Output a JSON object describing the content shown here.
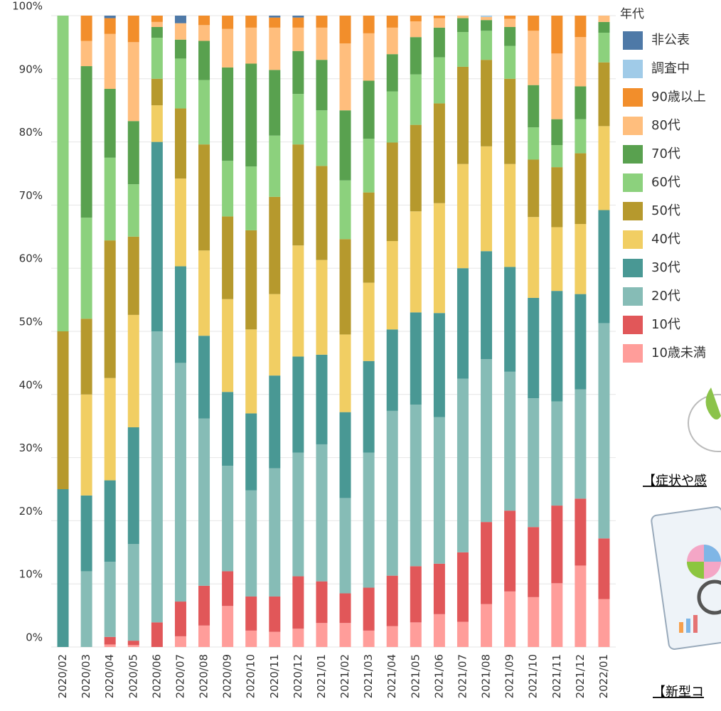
{
  "chart_data": {
    "type": "stacked_bar",
    "categories": [
      "2020/02",
      "2020/03",
      "2020/04",
      "2020/05",
      "2020/06",
      "2020/07",
      "2020/08",
      "2020/09",
      "2020/10",
      "2020/11",
      "2020/12",
      "2021/01",
      "2021/02",
      "2021/03",
      "2021/04",
      "2021/05",
      "2021/06",
      "2021/07",
      "2021/08",
      "2021/09",
      "2021/10",
      "2021/11",
      "2021/12",
      "2022/01"
    ],
    "ylim": [
      0,
      100
    ],
    "yticks": [
      {
        "value": 0,
        "label": "0%"
      },
      {
        "value": 10,
        "label": "10%"
      },
      {
        "value": 20,
        "label": "20%"
      },
      {
        "value": 30,
        "label": "30%"
      },
      {
        "value": 40,
        "label": "40%"
      },
      {
        "value": 50,
        "label": "50%"
      },
      {
        "value": 60,
        "label": "60%"
      },
      {
        "value": 70,
        "label": "70%"
      },
      {
        "value": 80,
        "label": "80%"
      },
      {
        "value": 90,
        "label": "90%"
      },
      {
        "value": 100,
        "label": "100%"
      }
    ],
    "grid": true,
    "legend_title": "年代",
    "legend": "right",
    "series": [
      {
        "name": "10歳未満",
        "color": "#ff9d9a",
        "values": [
          0,
          0,
          0.4,
          0.3,
          0,
          1.7,
          3.4,
          6.5,
          2.6,
          2.4,
          2.9,
          3.8,
          3.8,
          2.6,
          3.3,
          3.9,
          5.2,
          4,
          6.8,
          8.8,
          7.9,
          10.1,
          12.9,
          7.6
        ]
      },
      {
        "name": "10代",
        "color": "#e15759",
        "values": [
          0,
          0,
          1.2,
          0.7,
          3.9,
          5.5,
          6.3,
          5.5,
          5.4,
          5.6,
          8.3,
          6.6,
          4.7,
          6.8,
          8,
          8.9,
          8,
          11,
          13,
          12.8,
          11.1,
          12.3,
          10.6,
          9.6
        ]
      },
      {
        "name": "20代",
        "color": "#86bcb6",
        "values": [
          0,
          12,
          11.9,
          15.3,
          46.1,
          37.8,
          26.5,
          16.7,
          16.8,
          20.3,
          19.6,
          21.7,
          15.1,
          21.4,
          26.1,
          25.6,
          23.2,
          27.5,
          25.8,
          22,
          20.4,
          16.5,
          17.3,
          34.1
        ]
      },
      {
        "name": "30代",
        "color": "#499894",
        "values": [
          25,
          12,
          12.9,
          18.5,
          30,
          15.3,
          13.1,
          11.7,
          12.2,
          14.7,
          15.2,
          14.2,
          13.6,
          14.5,
          12.9,
          14.6,
          16.5,
          17.5,
          17.1,
          16.6,
          15.9,
          17.5,
          15.1,
          17.9
        ]
      },
      {
        "name": "40代",
        "color": "#f1ce63",
        "values": [
          0,
          16,
          16.2,
          17.8,
          5.8,
          13.9,
          13.5,
          14.7,
          13.3,
          12.9,
          17.6,
          15,
          12.3,
          12.4,
          14,
          16,
          17.4,
          16.5,
          16.6,
          16.3,
          12.8,
          10.1,
          11.1,
          13.3
        ]
      },
      {
        "name": "50代",
        "color": "#b6992d",
        "values": [
          25,
          12,
          21.8,
          12.4,
          4.2,
          11.1,
          16.8,
          13.1,
          15.7,
          15.4,
          16,
          14.9,
          15.1,
          14.3,
          15.6,
          13.7,
          15.8,
          15.4,
          13.7,
          13.5,
          9.1,
          9.5,
          11.2,
          10.1
        ]
      },
      {
        "name": "60代",
        "color": "#8cd17d",
        "values": [
          50,
          16,
          13.1,
          8.3,
          6.5,
          7.9,
          10.2,
          8.8,
          10.1,
          9.7,
          8,
          8.8,
          9.3,
          8.5,
          8.1,
          8,
          7.3,
          5.5,
          4.6,
          5.2,
          5.1,
          3.5,
          5.4,
          4.7
        ]
      },
      {
        "name": "70代",
        "color": "#59a14f",
        "values": [
          0,
          24,
          10.9,
          10,
          1.7,
          3,
          6.2,
          14.8,
          16.3,
          10.4,
          6.8,
          8,
          11.1,
          9.2,
          5.9,
          5.9,
          4.7,
          2.2,
          1.7,
          3,
          6.7,
          4.1,
          5.2,
          1.7
        ]
      },
      {
        "name": "80代",
        "color": "#ffbe7d",
        "values": [
          0,
          4,
          8.7,
          12.5,
          0.8,
          2.6,
          2.5,
          6.1,
          5.7,
          6.7,
          3.7,
          5.1,
          10.6,
          7.5,
          4.2,
          2.5,
          1.5,
          0.4,
          0.5,
          1.3,
          8.6,
          10.4,
          7.8,
          1
        ]
      },
      {
        "name": "90歳以上",
        "color": "#f28e2b",
        "values": [
          0,
          4,
          2.5,
          4.2,
          1,
          0,
          1.5,
          2.1,
          1.9,
          1.6,
          1.6,
          1.9,
          4.4,
          2.8,
          1.9,
          0.9,
          0.4,
          0,
          0,
          0.5,
          2.4,
          6,
          3.4,
          0
        ]
      },
      {
        "name": "調査中",
        "color": "#a0cbe8",
        "values": [
          0,
          0,
          0,
          0,
          0,
          0,
          0,
          0,
          0,
          0,
          0,
          0,
          0,
          0,
          0,
          0,
          0,
          0,
          0.2,
          0,
          0,
          0,
          0,
          0
        ]
      },
      {
        "name": "非公表",
        "color": "#4e79a7",
        "values": [
          0,
          0,
          0.4,
          0,
          0,
          1.2,
          0,
          0,
          0,
          0.3,
          0.3,
          0,
          0,
          0,
          0,
          0,
          0,
          0,
          0,
          0,
          0,
          0,
          0,
          0
        ]
      }
    ]
  },
  "sidebar": {
    "links": [
      "【症状や感",
      "【新型コ"
    ]
  }
}
